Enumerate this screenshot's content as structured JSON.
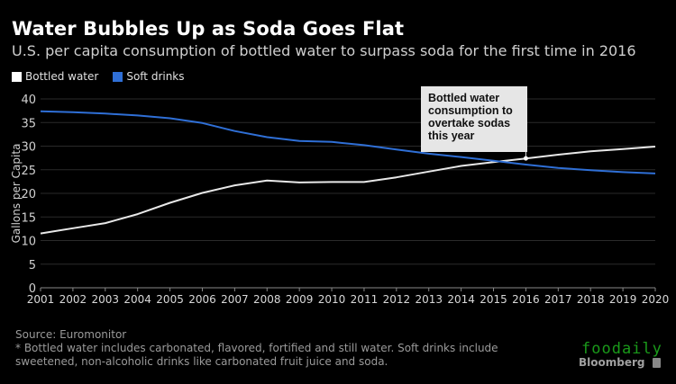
{
  "chart_data": {
    "type": "line",
    "title": "Water Bubbles Up as Soda Goes Flat",
    "subtitle": "U.S. per capita consumption of bottled water to surpass soda for the first time in 2016",
    "xlabel": "",
    "ylabel": "Gallons per Capita",
    "x": [
      2001,
      2002,
      2003,
      2004,
      2005,
      2006,
      2007,
      2008,
      2009,
      2010,
      2011,
      2012,
      2013,
      2014,
      2015,
      2016,
      2017,
      2018,
      2019,
      2020
    ],
    "ylim": [
      0,
      40
    ],
    "yticks": [
      0,
      5,
      10,
      15,
      20,
      25,
      30,
      35,
      40
    ],
    "grid": true,
    "legend_position": "top-left",
    "series": [
      {
        "name": "Bottled water",
        "color": "#e8e8e8",
        "values": [
          11.5,
          12.6,
          13.7,
          15.6,
          18.0,
          20.1,
          21.7,
          22.7,
          22.3,
          22.4,
          22.4,
          23.4,
          24.6,
          25.8,
          26.6,
          27.4,
          28.2,
          28.9,
          29.4,
          29.9
        ]
      },
      {
        "name": "Soft drinks",
        "color": "#2f6fd6",
        "values": [
          37.4,
          37.2,
          36.9,
          36.5,
          35.9,
          34.9,
          33.2,
          31.9,
          31.1,
          30.9,
          30.2,
          29.3,
          28.4,
          27.7,
          26.9,
          26.1,
          25.4,
          24.9,
          24.5,
          24.2
        ]
      }
    ],
    "annotations": [
      {
        "text": "Bottled water consumption to overtake sodas this year",
        "x": 2016,
        "y": 27.4
      }
    ]
  },
  "legend": {
    "items": [
      {
        "label": "Bottled water",
        "color": "#ffffff"
      },
      {
        "label": "Soft drinks",
        "color": "#2f6fd6"
      }
    ]
  },
  "callout": {
    "lines": [
      "Bottled water",
      "consumption to",
      "overtake sodas",
      "this year"
    ]
  },
  "footer": {
    "source": "Source: Euromonitor",
    "note": "* Bottled water includes carbonated, flavored, fortified and still water. Soft drinks include sweetened, non-alcoholic drinks like carbonated fruit juice and soda.",
    "watermark": "foodaily",
    "brand": "Bloomberg"
  }
}
